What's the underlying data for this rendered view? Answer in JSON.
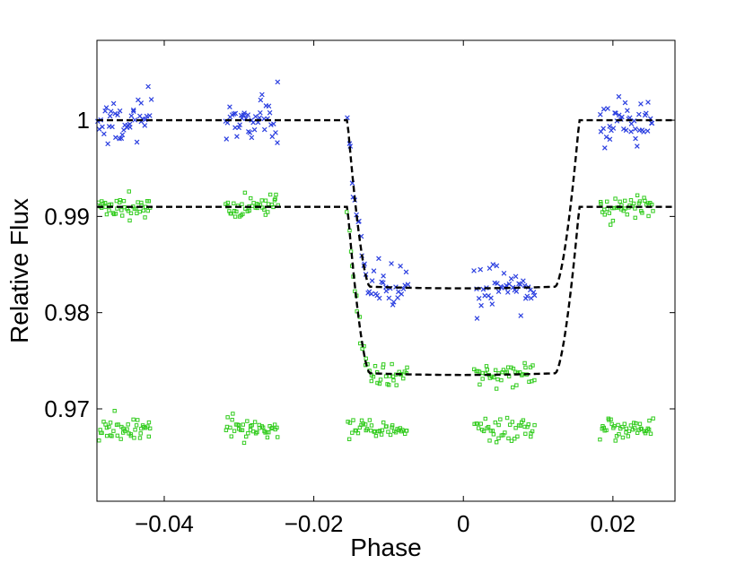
{
  "chart_data": {
    "type": "scatter",
    "xlabel": "Phase",
    "ylabel": "Relative Flux",
    "xlim": [
      -0.049,
      0.0283
    ],
    "ylim": [
      0.9604,
      1.0083
    ],
    "xticks": [
      -0.04,
      -0.02,
      0,
      0.02
    ],
    "xtick_labels": [
      "−0.04",
      "−0.02",
      "0",
      "0.02"
    ],
    "yticks": [
      0.97,
      0.98,
      0.99,
      1.0
    ],
    "ytick_labels": [
      "0.97",
      "0.98",
      "0.99",
      "1"
    ],
    "grid": false,
    "models": [
      {
        "baseline": 1.0,
        "depth": 0.0173,
        "ingress_start": -0.0155,
        "full_start": -0.0125,
        "full_end": 0.0123,
        "egress_end": 0.0155
      },
      {
        "baseline": 0.991,
        "depth": 0.0173,
        "ingress_start": -0.0155,
        "full_start": -0.0125,
        "full_end": 0.0123,
        "egress_end": 0.0155
      }
    ],
    "observations": [
      {
        "marker": "x",
        "color": "#2b3fe0",
        "mean_offset": 0.0,
        "scatter": 0.0012,
        "windows": [
          [
            -0.0488,
            -0.0418
          ],
          [
            -0.0318,
            -0.0248
          ],
          [
            -0.0155,
            -0.0075
          ],
          [
            0.0015,
            0.0095
          ],
          [
            0.0183,
            0.0253
          ]
        ]
      },
      {
        "marker": "square",
        "color": "#33cc1f",
        "mean_offset": -0.009,
        "scatter": 0.0006,
        "windows": [
          [
            -0.0488,
            -0.0418
          ],
          [
            -0.0318,
            -0.0248
          ],
          [
            -0.0155,
            -0.0075
          ],
          [
            0.0015,
            0.0095
          ],
          [
            0.0183,
            0.0253
          ]
        ]
      },
      {
        "marker": "square",
        "color": "#33cc1f",
        "mean_offset": 0.0,
        "scatter": 0.0006,
        "flat_level": 0.9679,
        "windows": [
          [
            -0.0488,
            -0.0418
          ],
          [
            -0.0318,
            -0.0248
          ],
          [
            -0.0155,
            -0.0075
          ],
          [
            0.0015,
            0.0095
          ],
          [
            0.0183,
            0.0253
          ]
        ]
      }
    ]
  }
}
